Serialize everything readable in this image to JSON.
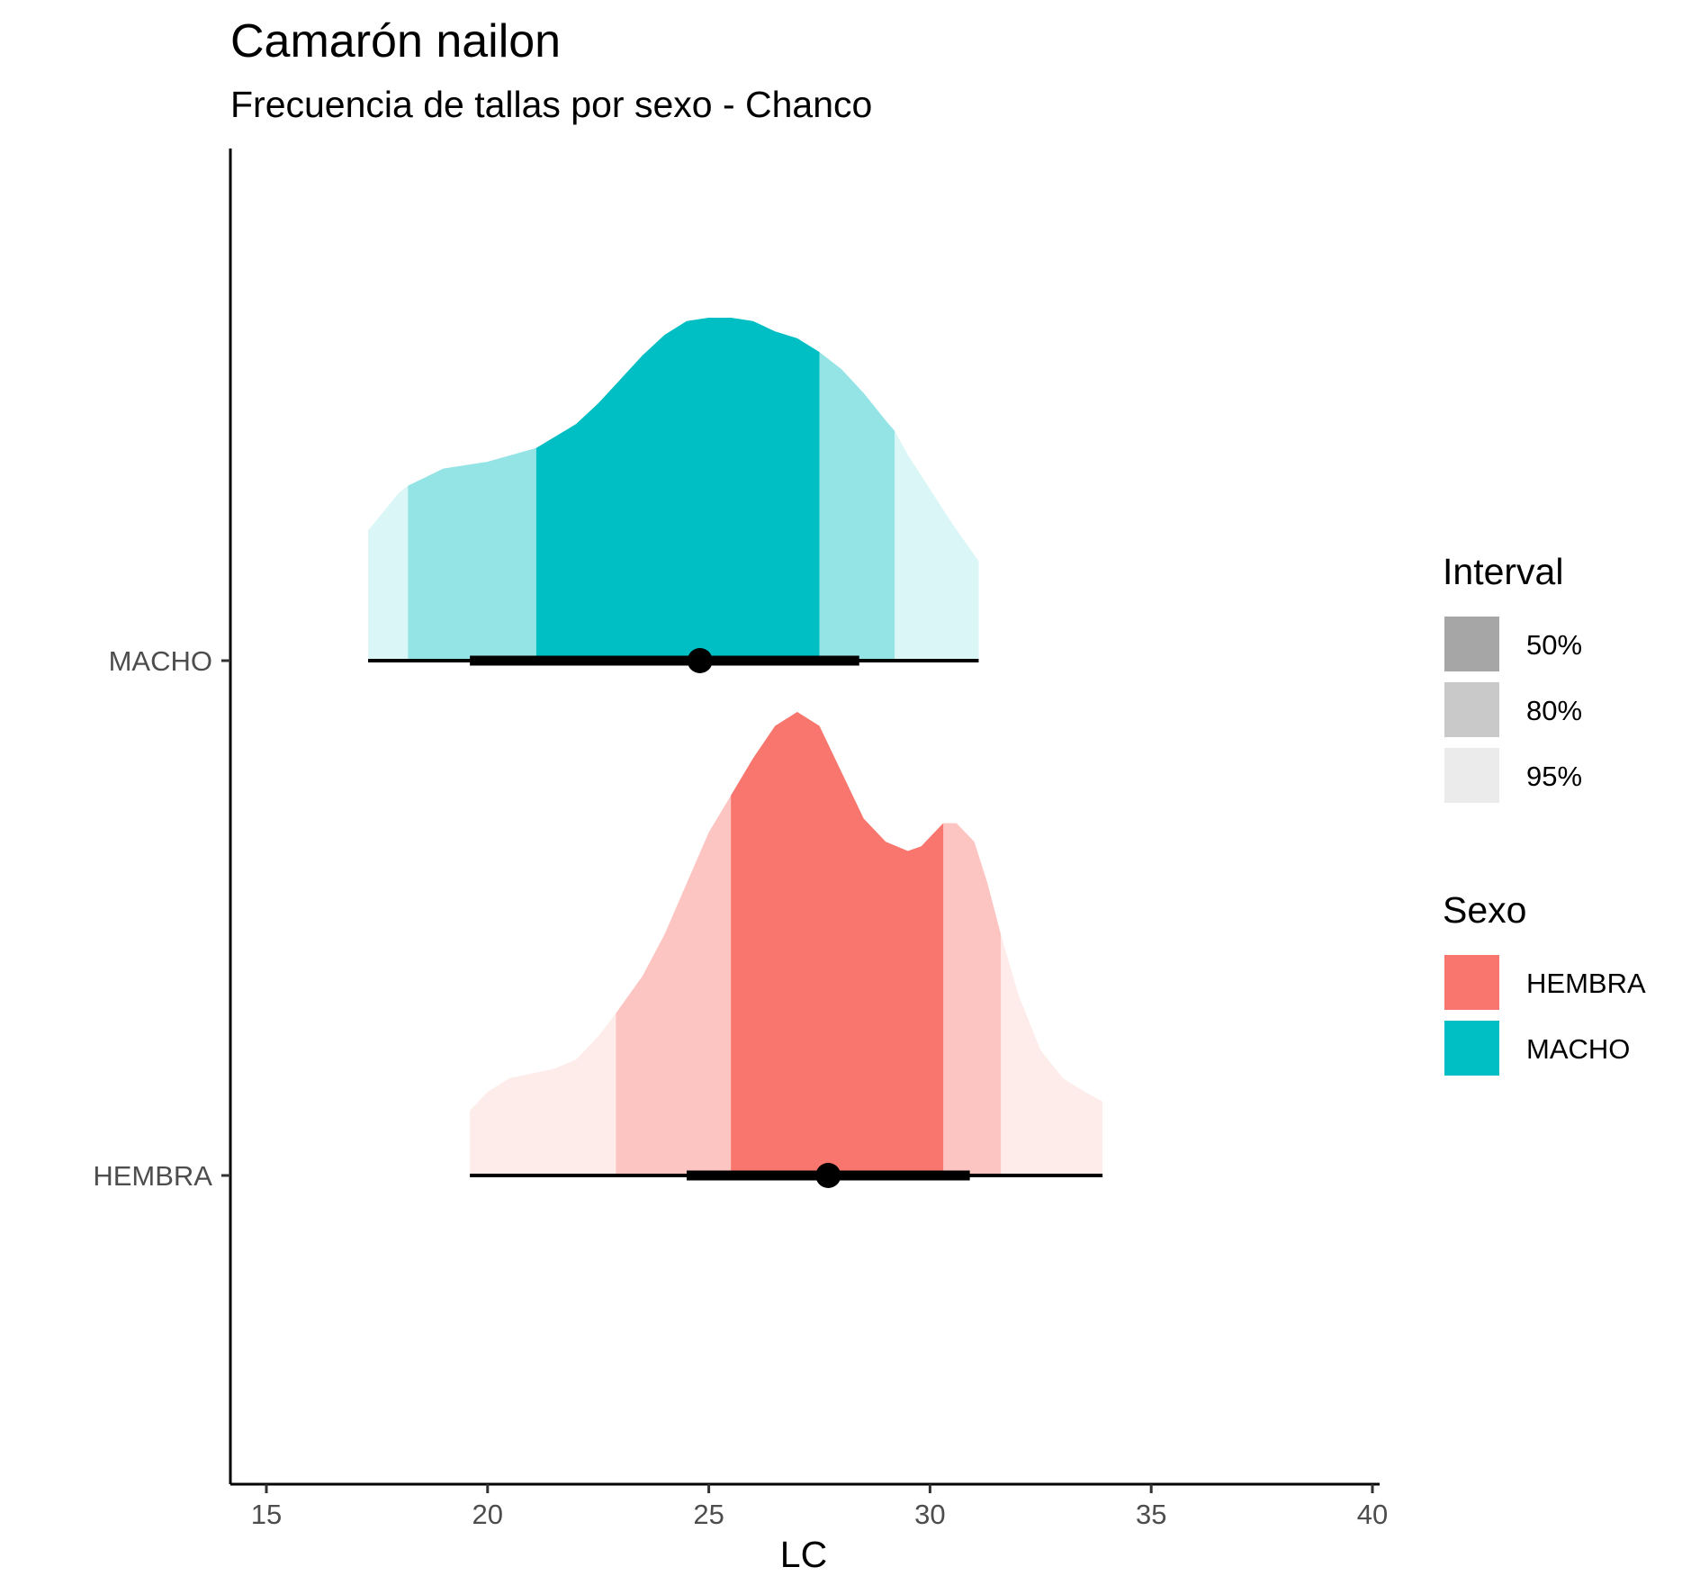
{
  "chart_data": {
    "type": "halfeye",
    "title": "Camarón nailon",
    "subtitle": "Frecuencia de tallas por sexo - Chanco",
    "xlabel": "LC",
    "ylabel": "",
    "xlim": [
      14.2,
      40.2
    ],
    "xticks": [
      15,
      20,
      25,
      30,
      35,
      40
    ],
    "grid": false,
    "legend_position": "right",
    "categories": [
      "MACHO",
      "HEMBRA"
    ],
    "series": [
      {
        "name": "MACHO",
        "color": "#00BFC4",
        "median": 24.8,
        "interval_50": [
          19.6,
          28.4
        ],
        "interval_95": [
          17.3,
          31.1
        ],
        "shade_50": [
          21.1,
          27.5
        ],
        "shade_80": [
          18.2,
          29.2
        ],
        "shade_95": [
          17.3,
          31.1
        ],
        "density": {
          "x": [
            17.3,
            18.0,
            18.2,
            19.0,
            20.0,
            21.1,
            22.0,
            22.5,
            23.0,
            23.5,
            24.0,
            24.5,
            25.0,
            25.5,
            26.0,
            26.5,
            27.0,
            27.5,
            28.0,
            28.5,
            29.0,
            29.2,
            29.5,
            30.0,
            30.5,
            31.1
          ],
          "y": [
            0.38,
            0.49,
            0.51,
            0.56,
            0.58,
            0.62,
            0.69,
            0.75,
            0.82,
            0.89,
            0.95,
            0.99,
            1.0,
            1.0,
            0.99,
            0.96,
            0.94,
            0.9,
            0.85,
            0.78,
            0.7,
            0.67,
            0.6,
            0.5,
            0.4,
            0.29
          ]
        }
      },
      {
        "name": "HEMBRA",
        "color": "#F8766D",
        "median": 27.7,
        "interval_50": [
          24.5,
          30.9
        ],
        "interval_95": [
          19.6,
          33.9
        ],
        "shade_50": [
          25.5,
          30.3
        ],
        "shade_80": [
          22.9,
          31.6
        ],
        "shade_95": [
          19.6,
          33.9
        ],
        "density": {
          "x": [
            19.6,
            20.0,
            20.5,
            21.0,
            21.5,
            22.0,
            22.5,
            22.9,
            23.5,
            24.0,
            24.5,
            25.0,
            25.5,
            26.0,
            26.5,
            27.0,
            27.5,
            28.0,
            28.5,
            29.0,
            29.5,
            29.8,
            30.0,
            30.3,
            30.6,
            31.0,
            31.3,
            31.6,
            32.0,
            32.5,
            33.0,
            33.5,
            33.9
          ],
          "y": [
            0.14,
            0.18,
            0.21,
            0.22,
            0.23,
            0.25,
            0.3,
            0.35,
            0.43,
            0.52,
            0.63,
            0.74,
            0.82,
            0.9,
            0.97,
            1.0,
            0.97,
            0.87,
            0.77,
            0.72,
            0.7,
            0.71,
            0.73,
            0.76,
            0.76,
            0.72,
            0.63,
            0.52,
            0.39,
            0.27,
            0.21,
            0.18,
            0.16
          ]
        }
      }
    ],
    "legends": [
      {
        "title": "Interval",
        "items": [
          {
            "label": "50%",
            "color": "#A6A6A6"
          },
          {
            "label": "80%",
            "color": "#C9C9C9"
          },
          {
            "label": "95%",
            "color": "#EBEBEB"
          }
        ]
      },
      {
        "title": "Sexo",
        "items": [
          {
            "label": "HEMBRA",
            "color": "#F8766D"
          },
          {
            "label": "MACHO",
            "color": "#00BFC4"
          }
        ]
      }
    ]
  }
}
